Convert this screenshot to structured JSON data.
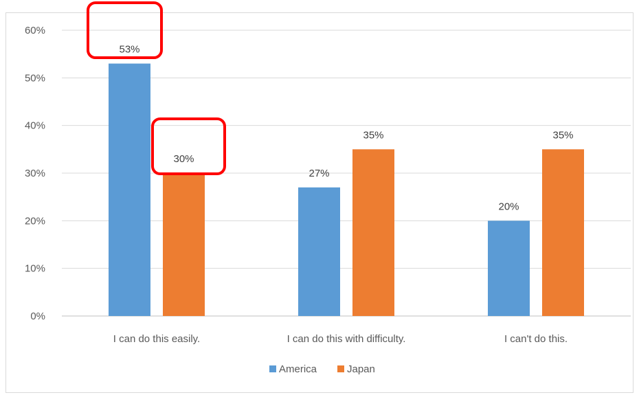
{
  "chart_data": {
    "type": "bar",
    "categories": [
      "I can do this easily.",
      "I can do this with difficulty.",
      "I can't do this."
    ],
    "series": [
      {
        "name": "America",
        "values": [
          53,
          27,
          20
        ],
        "labels": [
          "53%",
          "27%",
          "20%"
        ],
        "color": "#5b9bd5"
      },
      {
        "name": "Japan",
        "values": [
          30,
          35,
          35
        ],
        "labels": [
          "30%",
          "35%",
          "35%"
        ],
        "color": "#ed7d31"
      }
    ],
    "ylim": [
      0,
      60
    ],
    "yticks": [
      "0%",
      "10%",
      "20%",
      "30%",
      "40%",
      "50%",
      "60%"
    ],
    "grid": true,
    "legend": "bottom",
    "highlight_color": "#ff0000",
    "highlighted_labels": [
      "53%",
      "30%"
    ]
  }
}
